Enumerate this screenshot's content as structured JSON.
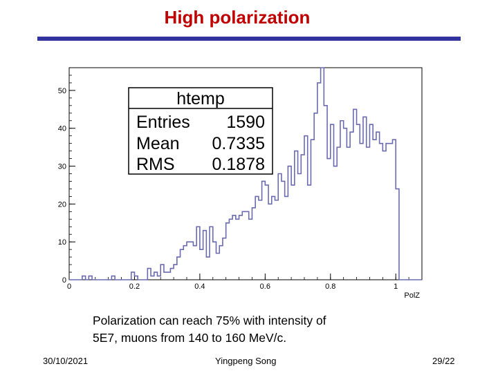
{
  "slide": {
    "title": "High polarization",
    "caption_line1": "Polarization can reach 75% with intensity of",
    "caption_line2": "5E7, muons from 140 to 160 MeV/c.",
    "footer_date": "30/10/2021",
    "footer_author": "Yingpeng Song",
    "footer_page": "29/22"
  },
  "colors": {
    "title": "#c00000",
    "title_bar": "#3333a0",
    "histogram_line": "#6a6ab0",
    "axis": "#000000"
  },
  "chart_data": {
    "type": "bar",
    "histogram": true,
    "xlabel": "PolZ",
    "ylabel": "",
    "xlim": [
      0,
      1.08
    ],
    "ylim": [
      0,
      56
    ],
    "x_ticks": [
      0,
      0.2,
      0.4,
      0.6,
      0.8,
      1
    ],
    "x_tick_labels": [
      "0",
      "0.2",
      "0.4",
      "0.6",
      "0.8",
      "1"
    ],
    "y_ticks": [
      0,
      10,
      20,
      30,
      40,
      50
    ],
    "y_tick_labels": [
      "0",
      "10",
      "20",
      "30",
      "40",
      "50"
    ],
    "grid": false,
    "bin_width": 0.01,
    "bin_start": 0,
    "values": [
      0,
      0,
      0,
      0,
      1,
      0,
      1,
      0,
      0,
      0,
      0,
      0,
      0,
      1,
      0,
      0,
      0,
      0,
      0,
      2,
      1,
      0,
      0,
      0,
      3,
      1,
      2,
      1,
      4,
      2,
      2,
      3,
      4,
      6,
      8,
      9,
      10,
      10,
      9,
      14,
      8,
      13,
      6,
      14,
      10,
      7,
      9,
      11,
      15,
      16,
      17,
      16,
      17,
      18,
      18,
      16,
      19,
      22,
      21,
      26,
      25,
      20,
      22,
      21,
      28,
      26,
      22,
      30,
      25,
      34,
      28,
      33,
      38,
      25,
      37,
      44,
      52,
      56,
      46,
      32,
      41,
      30,
      35,
      42,
      40,
      35,
      39,
      45,
      41,
      36,
      43,
      35,
      41,
      37,
      39,
      36,
      34,
      36,
      36,
      37,
      24,
      0,
      0,
      0,
      0,
      0,
      0,
      0
    ],
    "stats_box": {
      "title": "htemp",
      "rows": [
        {
          "label": "Entries",
          "value": "1590"
        },
        {
          "label": "Mean",
          "value": "0.7335"
        },
        {
          "label": "RMS",
          "value": "0.1878"
        }
      ]
    }
  }
}
